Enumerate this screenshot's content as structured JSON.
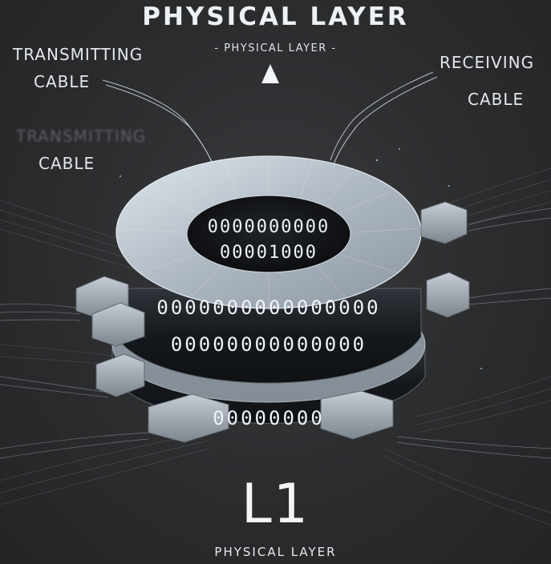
{
  "diagram": {
    "title": "PHYSICAL LAYER",
    "subtitle": "- PHYSICAL LAYER -",
    "transmitting_label_line1": "TRANSMITTING",
    "transmitting_label_line2": "CABLE",
    "faded_label_line1": "TRANSMITTING",
    "faded_label_line2": "CABLE",
    "receiving_label_line1": "RECEIVING",
    "receiving_label_line2": "CABLE",
    "layer_code": "L1",
    "bottom_caption": "PHYSICAL LAYER",
    "inner_bits_row1": "0000000000",
    "inner_bits_row2": "00001000",
    "outer_bits_row1": "0000000000000000",
    "outer_bits_row2": "00000000000000",
    "outer_bits_row3": "00000000",
    "icons": [
      "up-arrow-icon",
      "rj45-connector-icon"
    ],
    "colors": {
      "background": "#2b2c2e",
      "text": "#e8ebee",
      "ring_face": "#b9c2cb",
      "ring_band": "#1c1f23",
      "connector": "#a4acb4",
      "glow": "#9fe7ff"
    }
  }
}
